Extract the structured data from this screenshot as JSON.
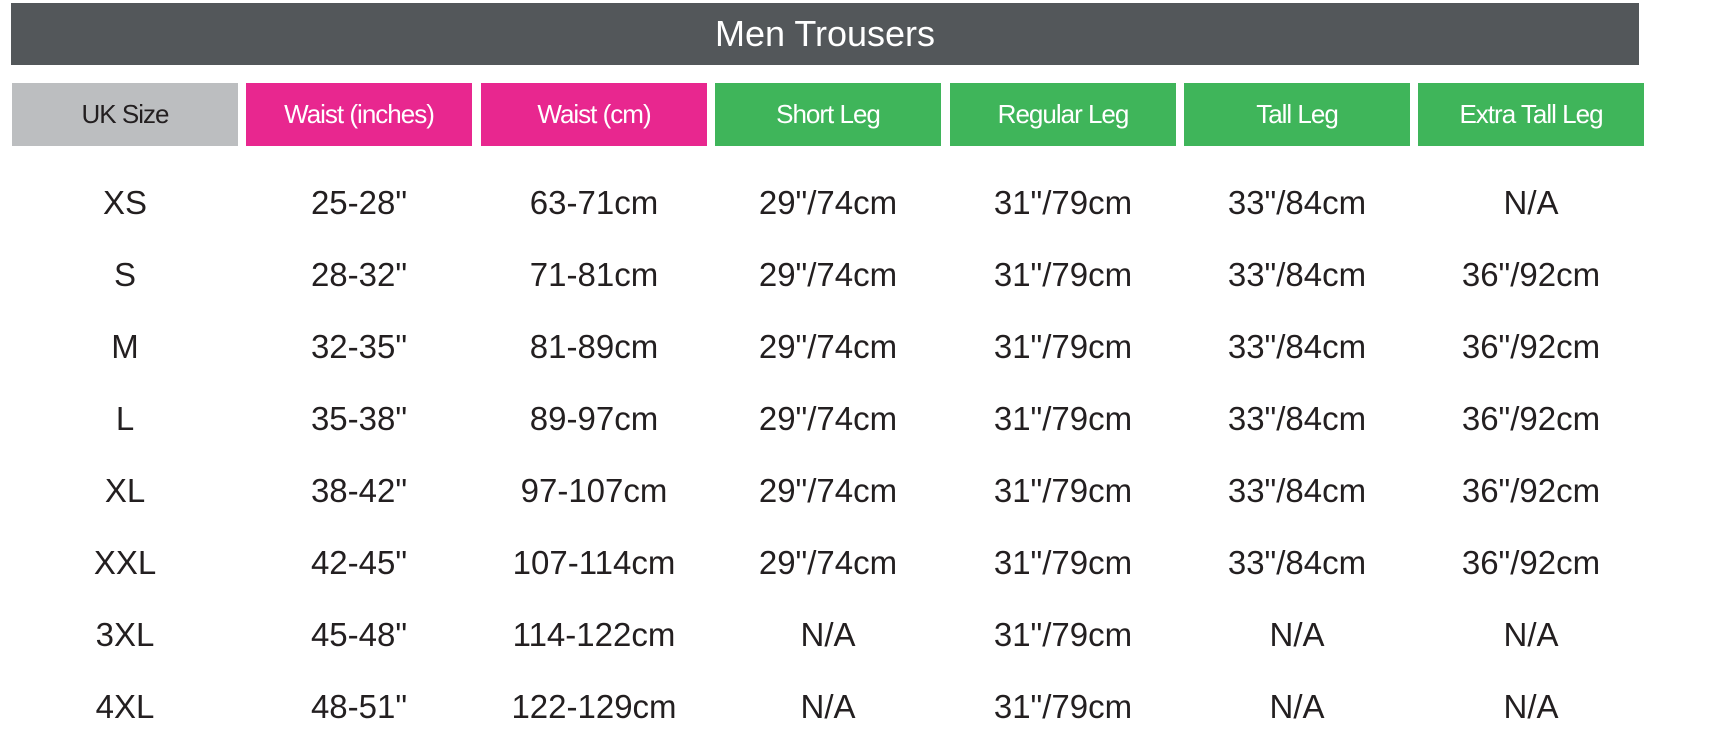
{
  "title": "Men Trousers",
  "colors": {
    "title_bg": "#53575a",
    "size_header": "#bcbec0",
    "waist_header": "#e8278f",
    "leg_header": "#3fb55a"
  },
  "headers": [
    "UK Size",
    "Waist (inches)",
    "Waist (cm)",
    "Short Leg",
    "Regular Leg",
    "Tall Leg",
    "Extra Tall Leg"
  ],
  "rows": [
    [
      "XS",
      "25-28\"",
      "63-71cm",
      "29\"/74cm",
      "31\"/79cm",
      "33\"/84cm",
      "N/A"
    ],
    [
      "S",
      "28-32\"",
      "71-81cm",
      "29\"/74cm",
      "31\"/79cm",
      "33\"/84cm",
      "36\"/92cm"
    ],
    [
      "M",
      "32-35\"",
      "81-89cm",
      "29\"/74cm",
      "31\"/79cm",
      "33\"/84cm",
      "36\"/92cm"
    ],
    [
      "L",
      "35-38\"",
      "89-97cm",
      "29\"/74cm",
      "31\"/79cm",
      "33\"/84cm",
      "36\"/92cm"
    ],
    [
      "XL",
      "38-42\"",
      "97-107cm",
      "29\"/74cm",
      "31\"/79cm",
      "33\"/84cm",
      "36\"/92cm"
    ],
    [
      "XXL",
      "42-45\"",
      "107-114cm",
      "29\"/74cm",
      "31\"/79cm",
      "33\"/84cm",
      "36\"/92cm"
    ],
    [
      "3XL",
      "45-48\"",
      "114-122cm",
      "N/A",
      "31\"/79cm",
      "N/A",
      "N/A"
    ],
    [
      "4XL",
      "48-51\"",
      "122-129cm",
      "N/A",
      "31\"/79cm",
      "N/A",
      "N/A"
    ]
  ]
}
